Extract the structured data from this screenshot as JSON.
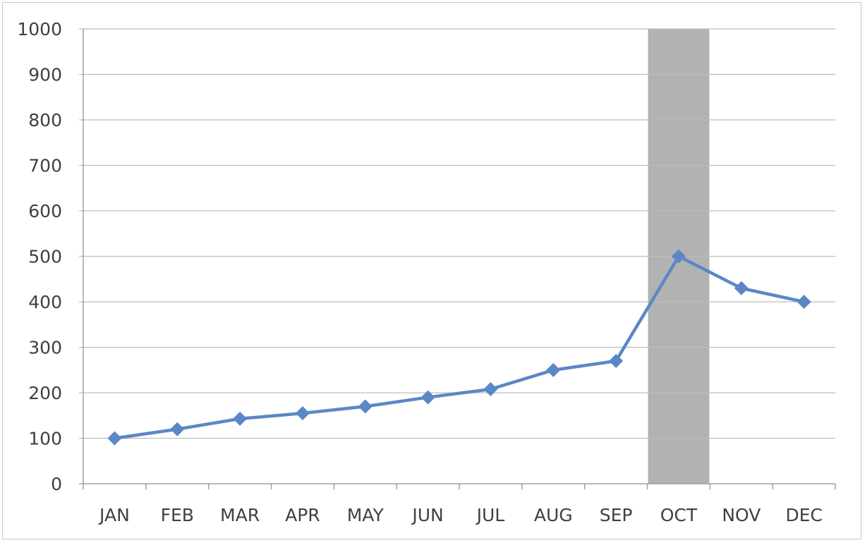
{
  "chart_data": {
    "type": "line",
    "categories": [
      "JAN",
      "FEB",
      "MAR",
      "APR",
      "MAY",
      "JUN",
      "JUL",
      "AUG",
      "SEP",
      "OCT",
      "NOV",
      "DEC"
    ],
    "series": [
      {
        "values": [
          100,
          120,
          143,
          155,
          170,
          190,
          208,
          250,
          270,
          500,
          430,
          400
        ]
      }
    ],
    "ylim": [
      0,
      1000
    ],
    "yticks": [
      0,
      100,
      200,
      300,
      400,
      500,
      600,
      700,
      800,
      900,
      1000
    ],
    "highlight_band": {
      "categories": [
        "OCT"
      ],
      "color": "#b2b2b2"
    },
    "grid": true,
    "marker": "diamond",
    "colors": {
      "series": "#5b87c5",
      "gridline": "#bdbdbd",
      "axis": "#a0a0a0",
      "band": "#b2b2b2"
    },
    "title": "",
    "xlabel": "",
    "ylabel": ""
  }
}
